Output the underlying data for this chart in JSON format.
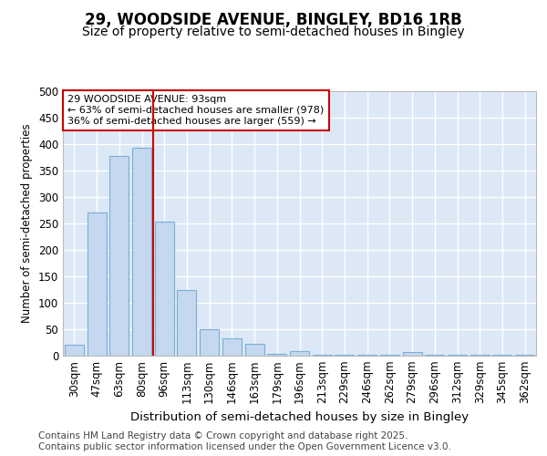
{
  "title1": "29, WOODSIDE AVENUE, BINGLEY, BD16 1RB",
  "title2": "Size of property relative to semi-detached houses in Bingley",
  "xlabel": "Distribution of semi-detached houses by size in Bingley",
  "ylabel": "Number of semi-detached properties",
  "categories": [
    "30sqm",
    "47sqm",
    "63sqm",
    "80sqm",
    "96sqm",
    "113sqm",
    "130sqm",
    "146sqm",
    "163sqm",
    "179sqm",
    "196sqm",
    "213sqm",
    "229sqm",
    "246sqm",
    "262sqm",
    "279sqm",
    "296sqm",
    "312sqm",
    "329sqm",
    "345sqm",
    "362sqm"
  ],
  "values": [
    20,
    270,
    378,
    393,
    253,
    125,
    50,
    33,
    22,
    4,
    8,
    2,
    2,
    1,
    1,
    7,
    1,
    1,
    1,
    1,
    1
  ],
  "bar_color": "#c5d8f0",
  "bar_edge_color": "#7aaed6",
  "vline_color": "#cc0000",
  "annotation_text": "29 WOODSIDE AVENUE: 93sqm\n← 63% of semi-detached houses are smaller (978)\n36% of semi-detached houses are larger (559) →",
  "annotation_box_color": "#ffffff",
  "annotation_box_edge": "#cc0000",
  "footer": "Contains HM Land Registry data © Crown copyright and database right 2025.\nContains public sector information licensed under the Open Government Licence v3.0.",
  "ylim": [
    0,
    500
  ],
  "fig_background": "#ffffff",
  "plot_background": "#dce8f5",
  "grid_color": "#ffffff",
  "title_fontsize": 12,
  "subtitle_fontsize": 10,
  "footer_fontsize": 7.5,
  "vline_index": 4
}
